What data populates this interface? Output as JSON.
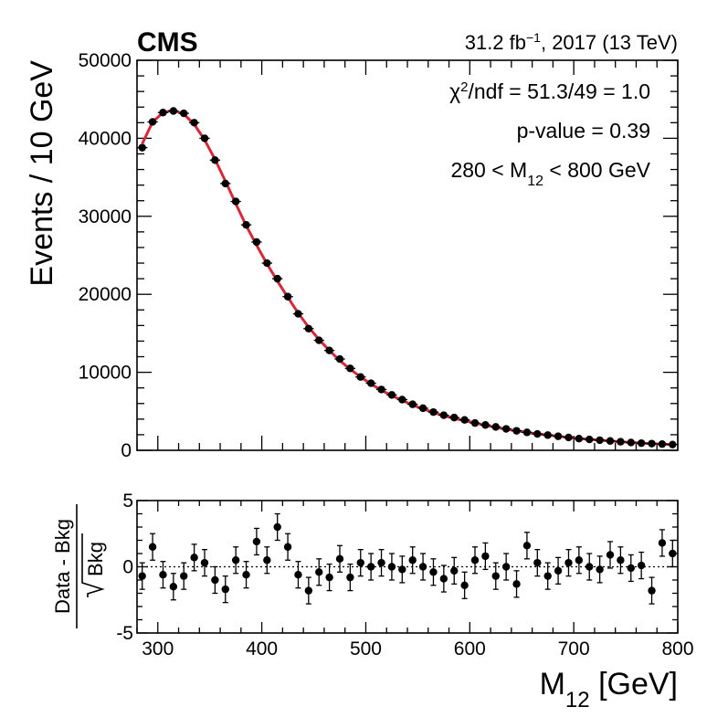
{
  "header": {
    "experiment": "CMS",
    "lumi_value": "31.2 fb",
    "lumi_exp": "−1",
    "lumi_rest": ", 2017 (13 TeV)"
  },
  "stats": {
    "chi2_symbol": "χ",
    "chi2_sup": "2",
    "chi2_text": "/ndf = 51.3/49 = 1.0",
    "pvalue": "p-value = 0.39",
    "range_pre": "280 < M",
    "range_sub": "12",
    "range_post": " < 800 GeV"
  },
  "chart_data": [
    {
      "type": "scatter",
      "name": "main-spectrum",
      "ylabel": "Events / 10 GeV",
      "xlim": [
        280,
        800
      ],
      "ylim": [
        0,
        50000
      ],
      "y_ticks": [
        0,
        10000,
        20000,
        30000,
        40000,
        50000
      ],
      "y_tick_labels": [
        "0",
        "10000",
        "20000",
        "30000",
        "40000",
        "50000"
      ],
      "x_ticks": [
        300,
        400,
        500,
        600,
        700,
        800
      ],
      "bin_width": 10,
      "series": [
        {
          "name": "Data",
          "x": [
            285,
            295,
            305,
            315,
            325,
            335,
            345,
            355,
            365,
            375,
            385,
            395,
            405,
            415,
            425,
            435,
            445,
            455,
            465,
            475,
            485,
            495,
            505,
            515,
            525,
            535,
            545,
            555,
            565,
            575,
            585,
            595,
            605,
            615,
            625,
            635,
            645,
            655,
            665,
            675,
            685,
            695,
            705,
            715,
            725,
            735,
            745,
            755,
            765,
            775,
            785,
            795
          ],
          "y": [
            38800,
            42100,
            43300,
            43500,
            43200,
            42000,
            40000,
            37200,
            34200,
            31900,
            28900,
            26700,
            24000,
            22000,
            19700,
            17500,
            15600,
            14100,
            12800,
            11700,
            10500,
            9400,
            8600,
            7800,
            7100,
            6500,
            5900,
            5400,
            4900,
            4500,
            4200,
            3900,
            3500,
            3250,
            3000,
            2750,
            2500,
            2300,
            2100,
            1950,
            1800,
            1650,
            1500,
            1400,
            1300,
            1200,
            1100,
            1000,
            920,
            860,
            800,
            740
          ]
        },
        {
          "name": "Fit",
          "x": [
            285,
            295,
            305,
            315,
            325,
            335,
            345,
            355,
            365,
            375,
            385,
            395,
            405,
            415,
            425,
            435,
            445,
            455,
            465,
            475,
            485,
            495,
            505,
            515,
            525,
            535,
            545,
            555,
            565,
            575,
            585,
            595,
            605,
            615,
            625,
            635,
            645,
            655,
            665,
            675,
            685,
            695,
            705,
            715,
            725,
            735,
            745,
            755,
            765,
            775,
            785,
            795
          ],
          "y": [
            39300,
            42100,
            43300,
            43600,
            43100,
            41800,
            39800,
            37300,
            34500,
            31600,
            28800,
            26300,
            23900,
            21700,
            19600,
            17600,
            15800,
            14200,
            12800,
            11500,
            10400,
            9400,
            8500,
            7700,
            7000,
            6400,
            5800,
            5300,
            4850,
            4450,
            4100,
            3800,
            3500,
            3200,
            2950,
            2700,
            2500,
            2300,
            2100,
            1950,
            1800,
            1650,
            1500,
            1400,
            1300,
            1200,
            1100,
            1000,
            920,
            850,
            790,
            730
          ]
        }
      ]
    },
    {
      "type": "scatter",
      "name": "pull",
      "xlabel_main": "M",
      "xlabel_sub": "12",
      "xlabel_unit": " [GeV]",
      "ylabel_num": "Data - Bkg",
      "ylabel_den": "Bkg",
      "xlim": [
        280,
        800
      ],
      "ylim": [
        -5,
        5
      ],
      "y_ticks": [
        -5,
        0,
        5
      ],
      "y_tick_labels": [
        "-5",
        "0",
        "5"
      ],
      "x_ticks": [
        300,
        400,
        500,
        600,
        700,
        800
      ],
      "x_tick_labels": [
        "300",
        "400",
        "500",
        "600",
        "700",
        "800"
      ],
      "error": 1,
      "series": [
        {
          "name": "Pull",
          "x": [
            285,
            295,
            305,
            315,
            325,
            335,
            345,
            355,
            365,
            375,
            385,
            395,
            405,
            415,
            425,
            435,
            445,
            455,
            465,
            475,
            485,
            495,
            505,
            515,
            525,
            535,
            545,
            555,
            565,
            575,
            585,
            595,
            605,
            615,
            625,
            635,
            645,
            655,
            665,
            675,
            685,
            695,
            705,
            715,
            725,
            735,
            745,
            755,
            765,
            775,
            785,
            795
          ],
          "y": [
            -0.7,
            1.5,
            -0.6,
            -1.5,
            -0.7,
            0.7,
            0.3,
            -1.0,
            -1.7,
            0.5,
            -0.6,
            1.9,
            0.5,
            3.0,
            1.5,
            -0.6,
            -1.8,
            -0.4,
            -0.8,
            0.6,
            -0.8,
            0.3,
            0.0,
            0.3,
            0.0,
            -0.2,
            0.5,
            0.0,
            -0.4,
            -0.9,
            -0.3,
            -1.4,
            0.5,
            0.8,
            -0.7,
            0.0,
            -1.3,
            1.6,
            0.3,
            -0.7,
            -0.3,
            0.3,
            0.5,
            0.0,
            -0.2,
            0.9,
            0.5,
            -0.1,
            0.1,
            -1.8,
            1.8,
            1.0
          ]
        }
      ]
    }
  ]
}
